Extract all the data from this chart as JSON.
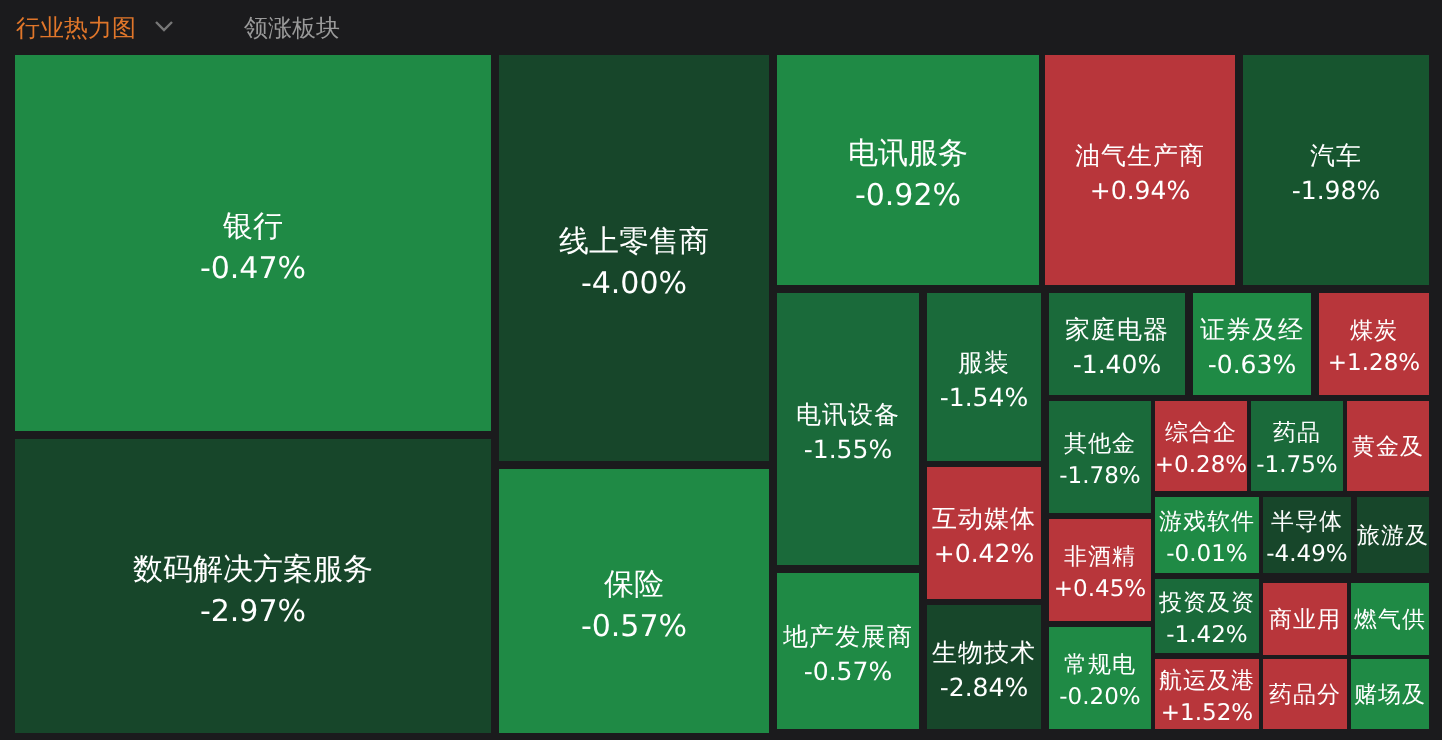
{
  "chart_data": {
    "type": "other",
    "title": "行业热力图",
    "annotations": [
      "领涨板块"
    ],
    "categories": [
      "银行",
      "数码解决方案服务",
      "线上零售商",
      "保险",
      "电讯服务",
      "油气生产商",
      "汽车",
      "电讯设备",
      "地产发展商",
      "服装",
      "互动媒体",
      "生物技术",
      "家庭电器",
      "证券及经",
      "煤炭",
      "其他金",
      "综合企",
      "药品",
      "黄金及",
      "非酒精",
      "常规电",
      "游戏软件",
      "投资及资",
      "航运及港",
      "半导体",
      "旅游及",
      "商业用",
      "药品分",
      "燃气供",
      "赌场及"
    ],
    "values": [
      -0.47,
      -2.97,
      -4.0,
      -0.57,
      -0.92,
      0.94,
      -1.98,
      -1.55,
      -0.57,
      -1.54,
      0.42,
      -2.84,
      -1.4,
      -0.63,
      1.28,
      -1.78,
      0.28,
      -1.75,
      null,
      0.45,
      -0.2,
      -0.01,
      -1.42,
      1.52,
      -4.49,
      null,
      null,
      null,
      null,
      null
    ],
    "value_labels": [
      "-0.47%",
      "-2.97%",
      "-4.00%",
      "-0.57%",
      "-0.92%",
      "+0.94%",
      "-1.98%",
      "-1.55%",
      "-0.57%",
      "-1.54%",
      "+0.42%",
      "-2.84%",
      "-1.40%",
      "-0.63%",
      "+1.28%",
      "-1.78%",
      "+0.28%",
      "-1.75%",
      null,
      "+0.45%",
      "-0.20%",
      "-0.01%",
      "-1.42%",
      "+1.52%",
      "-4.49%",
      null,
      null,
      null,
      null,
      null
    ],
    "colors": [
      null,
      null,
      null,
      null,
      null,
      null,
      null,
      null,
      null,
      null,
      null,
      null,
      null,
      null,
      null,
      null,
      null,
      null,
      "#b8363b",
      null,
      null,
      null,
      null,
      null,
      null,
      "#17462a",
      "#b8363b",
      "#b8363b",
      "#1f8a45",
      "#1f8a45"
    ]
  }
}
